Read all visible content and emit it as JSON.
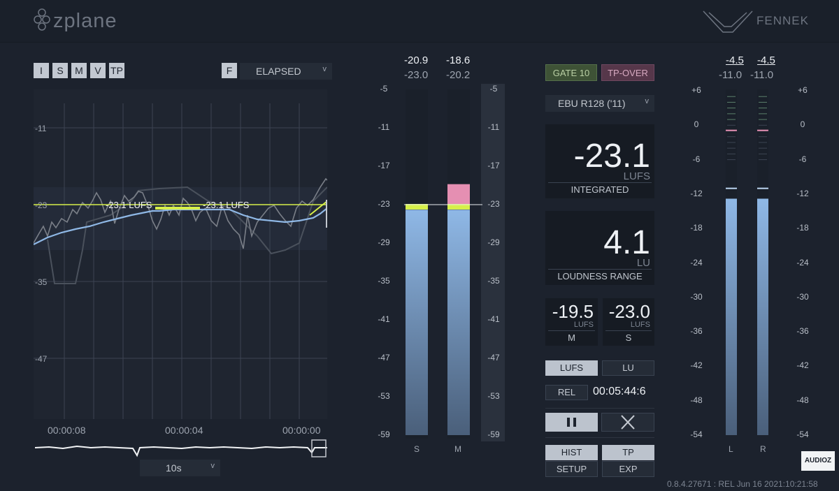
{
  "header": {
    "brand": "zplane",
    "product": "FENNEK"
  },
  "history": {
    "buttons": [
      "I",
      "S",
      "M",
      "V",
      "TP"
    ],
    "f_button": "F",
    "time_mode": "ELAPSED",
    "y_ticks": [
      "-11",
      "-23",
      "-35",
      "-47"
    ],
    "x_ticks": [
      "00:00:08",
      "00:00:04",
      "00:00:00"
    ],
    "marker_labels": [
      "-23.1 LUFS",
      "-23.1 LUFS"
    ],
    "zoom": "10s"
  },
  "sm_meter": {
    "top_s": "-20.9",
    "top_m": "-18.6",
    "sub_s": "-23.0",
    "sub_m": "-20.2",
    "scale": [
      "-5",
      "-11",
      "-17",
      "-23",
      "-29",
      "-35",
      "-41",
      "-47",
      "-53",
      "-59"
    ],
    "labels": [
      "S",
      "M"
    ],
    "s_level": -23.8,
    "m_level": -23.8,
    "m_peak": -19.8
  },
  "center": {
    "gate": "GATE 10",
    "tp_over": "TP-OVER",
    "standard": "EBU R128 ('11)",
    "integrated_value": "-23.1",
    "integrated_unit": "LUFS",
    "integrated_label": "INTEGRATED",
    "range_value": "4.1",
    "range_unit": "LU",
    "range_label": "LOUDNESS RANGE",
    "m_value": "-19.5",
    "m_unit": "LUFS",
    "m_label": "M",
    "s_value": "-23.0",
    "s_unit": "LUFS",
    "s_label": "S",
    "lufs_btn": "LUFS",
    "lu_btn": "LU",
    "rel_btn": "REL",
    "time": "00:05:44:6",
    "hist_btn": "HIST",
    "tp_btn": "TP",
    "setup_btn": "SETUP",
    "exp_btn": "EXP",
    "version": "0.8.4.27671 : REL Jun 16 2021:10:21:58"
  },
  "tp_meter": {
    "top_l": "-4.5",
    "top_r": "-4.5",
    "sub_l": "-11.0",
    "sub_r": "-11.0",
    "scale": [
      "+6",
      "0",
      "-6",
      "-12",
      "-18",
      "-24",
      "-30",
      "-36",
      "-42",
      "-48",
      "-54"
    ],
    "labels": [
      "L",
      "R"
    ],
    "l_level": -12.8,
    "r_level": -12.8
  },
  "watermark": "AUDIOZ",
  "colors": {
    "accent_yellow": "#d6f04a",
    "accent_blue": "#8fb8e6",
    "pink": "#e58fb2"
  }
}
